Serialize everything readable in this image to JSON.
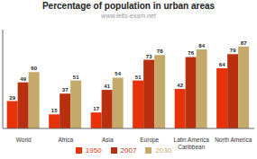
{
  "chart_data": {
    "type": "bar",
    "title": "Percentage of population in urban areas",
    "subtitle": "www.ielts-exam.net",
    "categories": [
      "World",
      "Africa",
      "Asia",
      "Europe",
      "Latin America\nCaribbean",
      "North America"
    ],
    "series": [
      {
        "name": "1950",
        "color": "#e8320a",
        "values": [
          29,
          15,
          17,
          51,
          42,
          64
        ]
      },
      {
        "name": "2007",
        "color": "#b83010",
        "values": [
          49,
          37,
          41,
          73,
          76,
          79
        ]
      },
      {
        "name": "2030",
        "color": "#c4a96a",
        "values": [
          60,
          51,
          54,
          78,
          84,
          87
        ]
      }
    ],
    "ylim": [
      0,
      105
    ],
    "data_labels": true,
    "tick_labels": "x",
    "legend": "bottom",
    "grid": false
  }
}
